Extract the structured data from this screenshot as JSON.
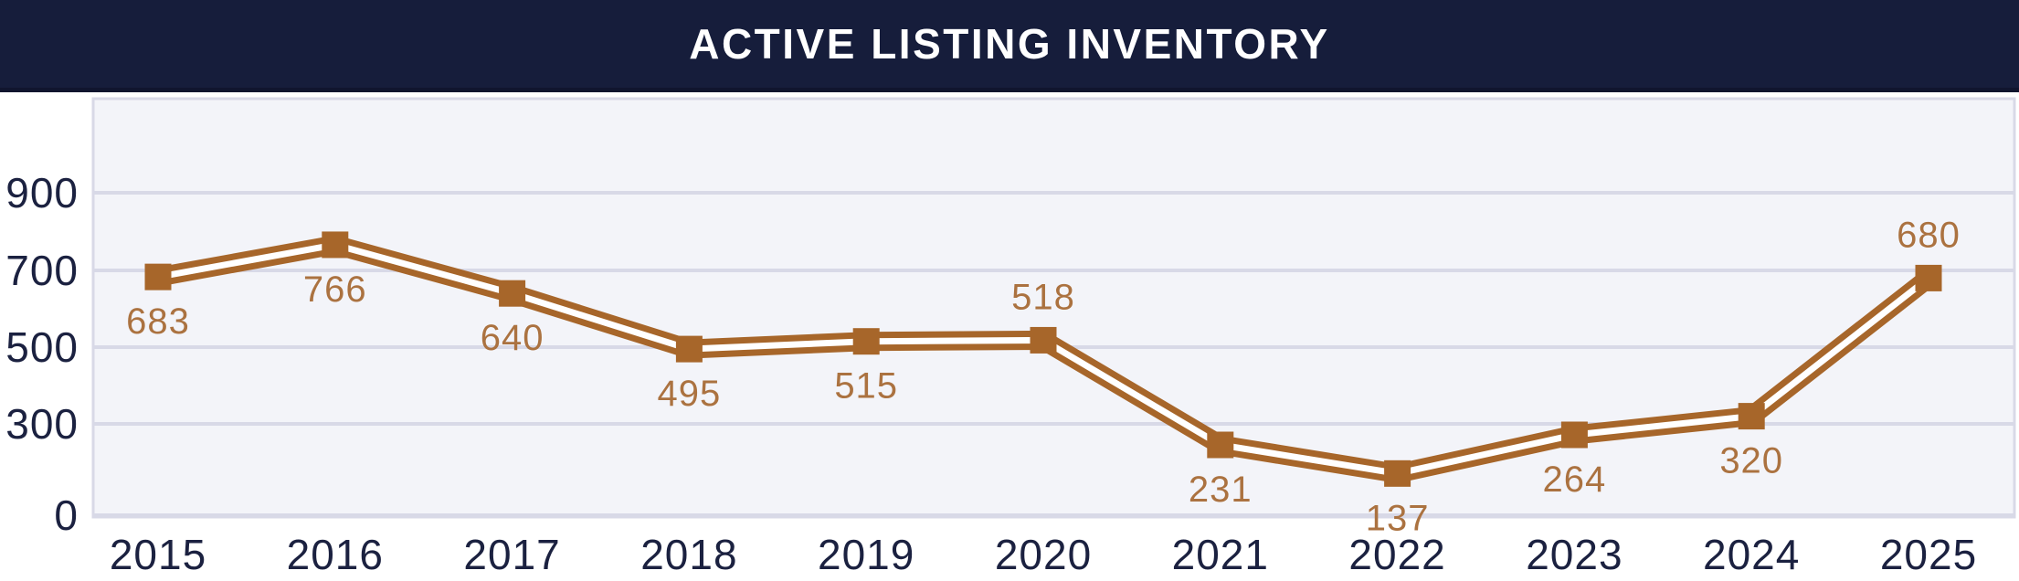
{
  "header": {
    "title": "ACTIVE LISTING INVENTORY"
  },
  "chart_data": {
    "type": "line",
    "title": "ACTIVE LISTING INVENTORY",
    "categories": [
      "2015",
      "2016",
      "2017",
      "2018",
      "2019",
      "2020",
      "2021",
      "2022",
      "2023",
      "2024",
      "2025"
    ],
    "values": [
      683,
      766,
      640,
      495,
      515,
      518,
      231,
      137,
      264,
      320,
      680
    ],
    "data_labels": [
      "683",
      "766",
      "640",
      "495",
      "515",
      "518",
      "231",
      "137",
      "264",
      "320",
      "680"
    ],
    "label_placement": [
      "below",
      "below",
      "below",
      "below",
      "below",
      "above",
      "below",
      "below",
      "below",
      "below",
      "above"
    ],
    "yticks": [
      900,
      700,
      500,
      300,
      0
    ],
    "ylim": [
      0,
      1150
    ],
    "xlabel": "",
    "ylabel": "",
    "grid": true,
    "legend": false,
    "marker": "square",
    "line_style": "double"
  },
  "colors": {
    "page_bg": "#ffffff",
    "header_bg": "#161d3b",
    "header_border": "#10152e",
    "header_text": "#ffffff",
    "plot_bg": "#f3f4f9",
    "plot_border": "#d8d9e7",
    "gridline": "#d8d9e7",
    "line": "#a7662a",
    "line_core": "#ffffff",
    "marker": "#a7662a",
    "data_label": "#ab7240",
    "axis_text": "#1b2140"
  }
}
